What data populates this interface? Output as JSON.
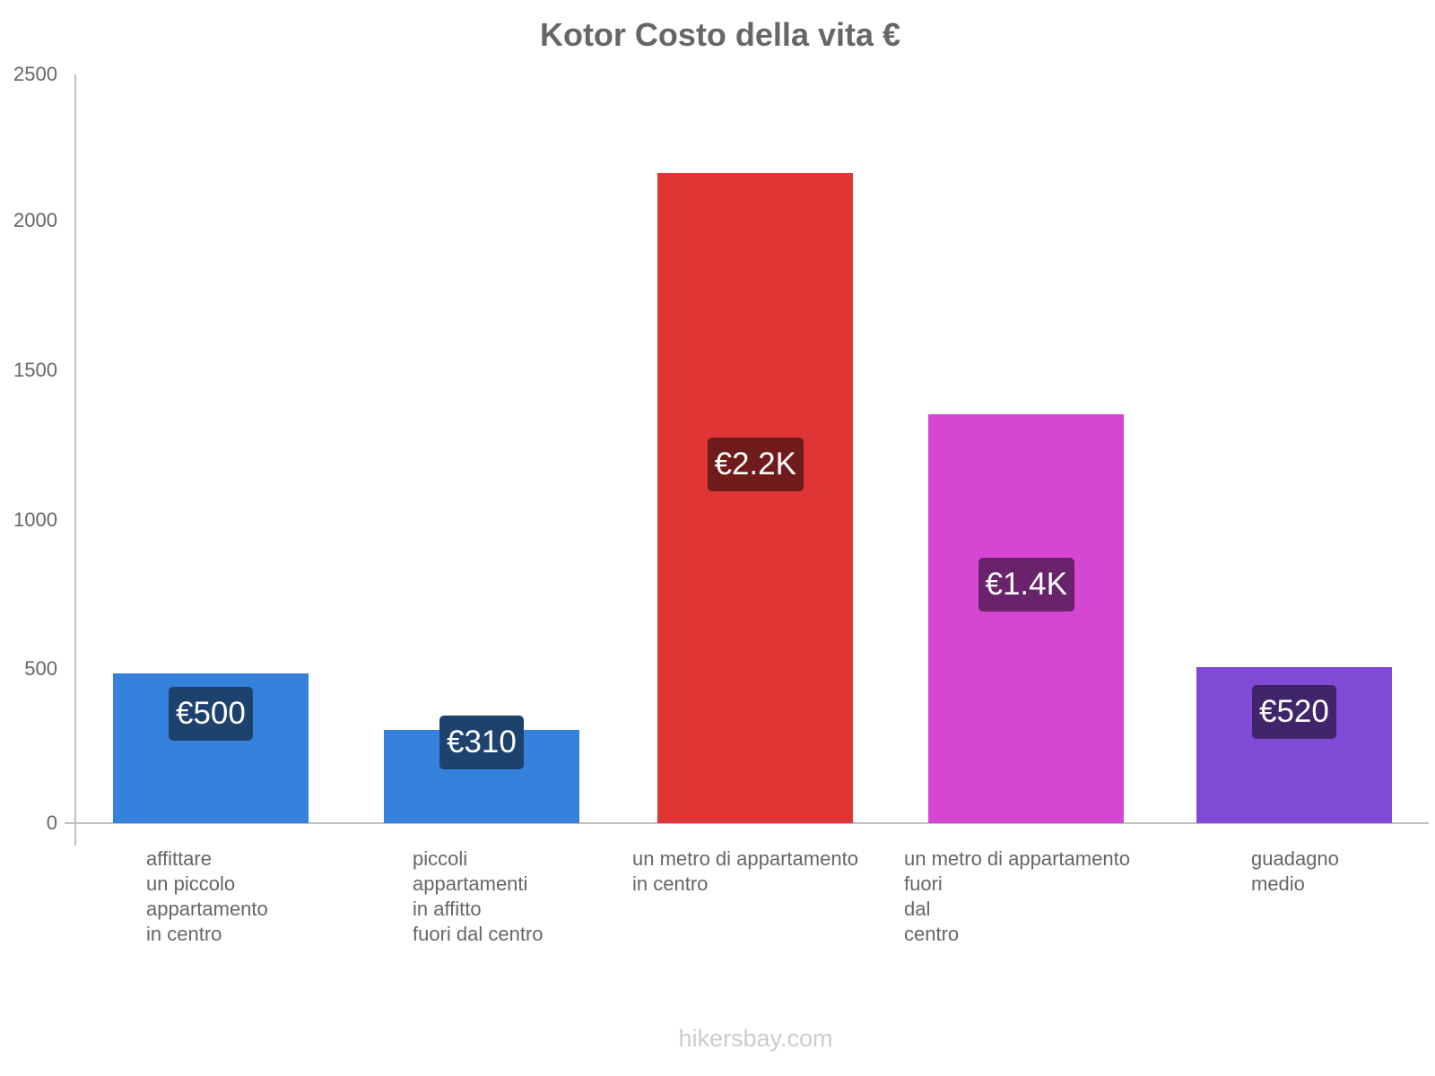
{
  "chart_data": {
    "type": "bar",
    "title": "Kotor Costo della vita €",
    "xlabel": "",
    "ylabel": "",
    "ylim": [
      0,
      2500
    ],
    "yticks": [
      "0",
      "500",
      "1000",
      "1500",
      "2000",
      "2500"
    ],
    "grid": false,
    "legend": null,
    "categories": [
      "affittare un piccolo appartamento in centro",
      "piccoli appartamenti in affitto fuori dal centro",
      "un metro di appartamento in centro",
      "un metro di appartamento fuori dal centro",
      "guadagno medio"
    ],
    "values": [
      500,
      310,
      2170,
      1365,
      520
    ],
    "data_labels": [
      "€500",
      "€310",
      "€2.2K",
      "€1.4K",
      "€520"
    ],
    "colors": [
      "#3582dd",
      "#3582dd",
      "#e03535",
      "#d547d3",
      "#8049d6"
    ],
    "label_colors": [
      "#1d426e",
      "#1d426e",
      "#701b1b",
      "#6a236a",
      "#40256b"
    ]
  },
  "xlabels": [
    "affittare\nun piccolo\nappartamento\nin centro",
    "piccoli\nappartamenti\nin affitto\nfuori dal centro",
    "un metro di appartamento\nin centro",
    "un metro di appartamento\nfuori\ndal\ncentro",
    "guadagno\nmedio"
  ],
  "watermark": "hikersbay.com"
}
